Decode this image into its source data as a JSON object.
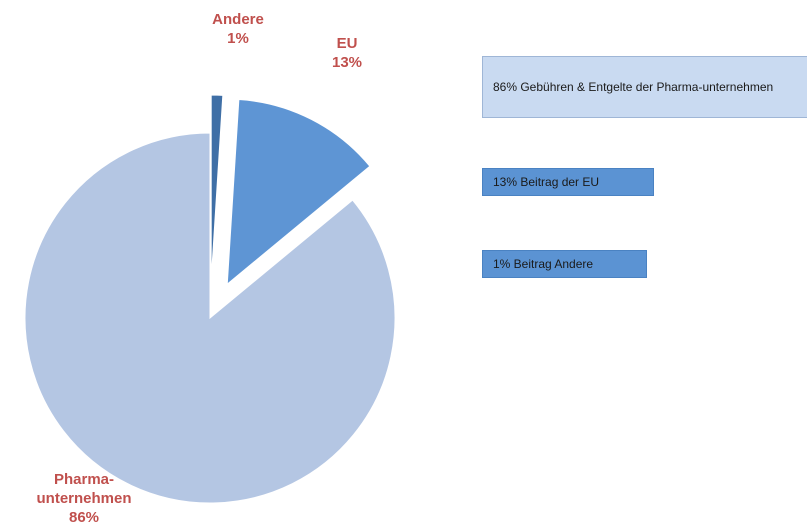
{
  "chart_data": {
    "type": "pie",
    "slices": [
      {
        "key": "pharma",
        "label_lines": [
          "Pharma-",
          "unternehmen",
          "86%"
        ],
        "value": 86,
        "color": "#b4c6e3",
        "exploded": false
      },
      {
        "key": "eu",
        "label_lines": [
          "EU",
          "13%"
        ],
        "value": 13,
        "color": "#5e95d4",
        "exploded": true
      },
      {
        "key": "andere",
        "label_lines": [
          "Andere",
          "1%"
        ],
        "value": 1,
        "color": "#3f6fa6",
        "exploded": true
      }
    ],
    "legend": [
      {
        "key": "pharma",
        "text": "86% Gebühren & Entgelte der Pharma-unternehmen",
        "color": "#c9daf1"
      },
      {
        "key": "eu",
        "text": "13% Beitrag der EU",
        "color": "#5b93d3"
      },
      {
        "key": "andere",
        "text": "1% Beitrag Andere",
        "color": "#5b93d3"
      }
    ],
    "label_color": "#c0504d"
  }
}
